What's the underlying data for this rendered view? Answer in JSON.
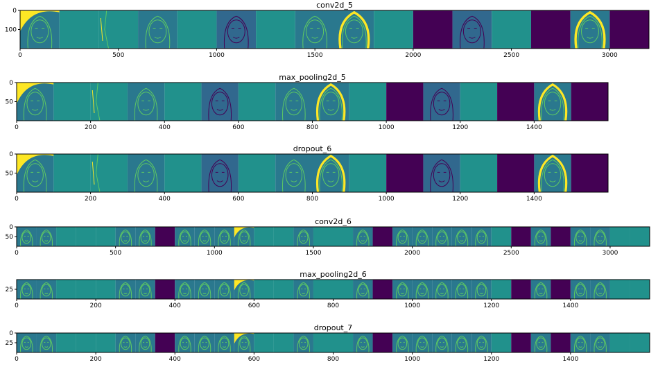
{
  "colors": {
    "dark": "#440154",
    "teal": "#2a788e",
    "mid": "#21918c",
    "green": "#5ec962",
    "yellow": "#fde725",
    "slate": "#31688e"
  },
  "chart_data": [
    {
      "type": "heatmap",
      "title": "conv2d_5",
      "xlim": [
        0,
        3200
      ],
      "ylim": [
        0,
        200
      ],
      "xticks": [
        0,
        500,
        1000,
        1500,
        2000,
        2500,
        3000
      ],
      "yticks": [
        0,
        100
      ],
      "tile_width": 200,
      "tiles": [
        "face-bright",
        "uniform",
        "edges",
        "face-lines",
        "uniform",
        "face-dark",
        "uniform",
        "face-lines",
        "face-bright-lines",
        "uniform",
        "dark",
        "face-dark",
        "uniform",
        "dark",
        "face-bright-lines",
        "dark"
      ]
    },
    {
      "type": "heatmap",
      "title": "max_pooling2d_5",
      "xlim": [
        0,
        1600
      ],
      "ylim": [
        0,
        100
      ],
      "xticks": [
        0,
        200,
        400,
        600,
        800,
        1000,
        1200,
        1400
      ],
      "yticks": [
        0,
        50
      ],
      "tile_width": 100,
      "tiles": [
        "face-bright",
        "uniform",
        "edges",
        "face-lines",
        "uniform",
        "face-dark",
        "uniform",
        "face-lines",
        "face-bright-lines",
        "uniform",
        "dark",
        "face-dark",
        "uniform",
        "dark",
        "face-bright-lines",
        "dark"
      ]
    },
    {
      "type": "heatmap",
      "title": "dropout_6",
      "xlim": [
        0,
        1600
      ],
      "ylim": [
        0,
        100
      ],
      "xticks": [
        0,
        200,
        400,
        600,
        800,
        1000,
        1200,
        1400
      ],
      "yticks": [
        0,
        50
      ],
      "tile_width": 100,
      "tiles": [
        "face-bright",
        "uniform",
        "edges",
        "face-lines",
        "uniform",
        "face-dark",
        "uniform",
        "face-lines",
        "face-bright-lines",
        "uniform",
        "dark",
        "face-dark",
        "uniform",
        "dark",
        "face-bright-lines",
        "dark"
      ]
    },
    {
      "type": "heatmap",
      "title": "conv2d_6",
      "xlim": [
        0,
        3200
      ],
      "ylim": [
        0,
        100
      ],
      "xticks": [
        0,
        500,
        1000,
        1500,
        2000,
        2500,
        3000
      ],
      "yticks": [
        0,
        50
      ],
      "tile_width": 100,
      "tiles": [
        "face-lines",
        "face-lines",
        "uniform",
        "uniform",
        "uniform",
        "face-lines",
        "face-lines",
        "dark",
        "face-lines",
        "face-lines",
        "face-lines",
        "face-bright",
        "uniform",
        "uniform",
        "face-lines",
        "uniform",
        "uniform",
        "face-lines",
        "dark",
        "face-lines",
        "face-lines",
        "face-lines",
        "face-lines",
        "face-lines",
        "uniform",
        "dark",
        "face-lines",
        "dark",
        "face-lines",
        "face-lines",
        "uniform",
        "uniform"
      ]
    },
    {
      "type": "heatmap",
      "title": "max_pooling2d_6",
      "xlim": [
        0,
        1600
      ],
      "ylim": [
        0,
        50
      ],
      "xticks": [
        0,
        200,
        400,
        600,
        800,
        1000,
        1200,
        1400
      ],
      "yticks": [
        25
      ],
      "tile_width": 50,
      "tiles": [
        "face-lines",
        "face-lines",
        "uniform",
        "uniform",
        "uniform",
        "face-lines",
        "face-lines",
        "dark",
        "face-lines",
        "face-lines",
        "face-lines",
        "face-bright",
        "uniform",
        "uniform",
        "face-lines",
        "uniform",
        "uniform",
        "face-lines",
        "dark",
        "face-lines",
        "face-lines",
        "face-lines",
        "face-lines",
        "face-lines",
        "uniform",
        "dark",
        "face-lines",
        "dark",
        "face-lines",
        "face-lines",
        "uniform",
        "uniform"
      ]
    },
    {
      "type": "heatmap",
      "title": "dropout_7",
      "xlim": [
        0,
        1600
      ],
      "ylim": [
        0,
        50
      ],
      "xticks": [
        0,
        200,
        400,
        600,
        800,
        1000,
        1200,
        1400
      ],
      "yticks": [
        0,
        25
      ],
      "tile_width": 50,
      "tiles": [
        "face-lines",
        "face-lines",
        "uniform",
        "uniform",
        "uniform",
        "face-lines",
        "face-lines",
        "dark",
        "face-lines",
        "face-lines",
        "face-lines",
        "face-bright",
        "uniform",
        "uniform",
        "face-lines",
        "uniform",
        "uniform",
        "face-lines",
        "dark",
        "face-lines",
        "face-lines",
        "face-lines",
        "face-lines",
        "face-lines",
        "uniform",
        "dark",
        "face-lines",
        "dark",
        "face-lines",
        "face-lines",
        "uniform",
        "uniform"
      ]
    }
  ]
}
